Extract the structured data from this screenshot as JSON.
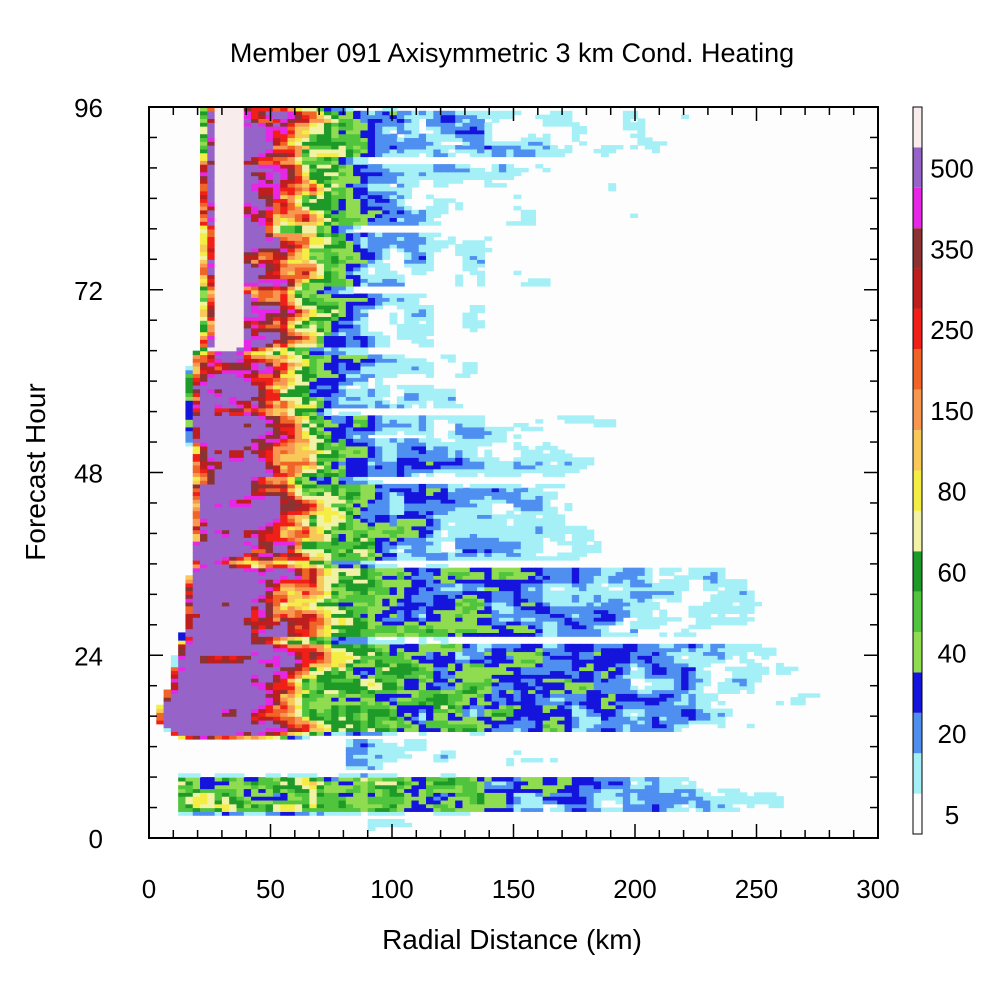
{
  "chart_data": {
    "type": "heatmap",
    "title": "Member 091 Axisymmetric 3 km Cond. Heating",
    "xlabel": "Radial Distance (km)",
    "ylabel": "Forecast Hour",
    "xlim": [
      0,
      300
    ],
    "ylim": [
      0,
      96
    ],
    "x_ticks": [
      0,
      50,
      100,
      150,
      200,
      250,
      300
    ],
    "x_tick_labels": [
      "0",
      "50",
      "100",
      "150",
      "200",
      "250",
      "300"
    ],
    "y_ticks": [
      0,
      24,
      48,
      72,
      96
    ],
    "y_tick_labels": [
      "0",
      "24",
      "48",
      "72",
      "96"
    ],
    "grid": false,
    "legend": "colorbar-right",
    "colorbar": {
      "levels": [
        5,
        10,
        20,
        30,
        40,
        50,
        60,
        70,
        80,
        100,
        150,
        200,
        250,
        300,
        350,
        400,
        500
      ],
      "labels": [
        "5",
        "20",
        "40",
        "60",
        "80",
        "150",
        "250",
        "350",
        "500"
      ],
      "colors": [
        "#fdfdfd",
        "#a4f0f6",
        "#4f8ff0",
        "#1414dc",
        "#8fdc50",
        "#50c43c",
        "#1e9a28",
        "#f2f2a6",
        "#f4ee44",
        "#f8c858",
        "#f89850",
        "#f06428",
        "#f02018",
        "#be1e1e",
        "#8c3232",
        "#e628e6",
        "#9664c8",
        "#f8ecec"
      ]
    },
    "bands": [
      {
        "t0": 0.5,
        "t1": 3.0,
        "strength": 0.3,
        "outer": 175,
        "inner": 90
      },
      {
        "t0": 3.0,
        "t1": 8.5,
        "strength": 0.58,
        "outer": 300,
        "inner": 12
      },
      {
        "t0": 8.5,
        "t1": 13.5,
        "strength": 0.32,
        "outer": 300,
        "inner": 80
      },
      {
        "t0": 13.5,
        "t1": 26.0,
        "strength": 0.62,
        "outer": 300,
        "inner": 0
      },
      {
        "t0": 26.0,
        "t1": 36.0,
        "strength": 0.55,
        "outer": 300,
        "inner": 14
      },
      {
        "t0": 36.0,
        "t1": 47.0,
        "strength": 0.46,
        "outer": 240,
        "inner": 16
      },
      {
        "t0": 47.0,
        "t1": 56.0,
        "strength": 0.4,
        "outer": 300,
        "inner": 17
      },
      {
        "t0": 56.0,
        "t1": 64.0,
        "strength": 0.38,
        "outer": 160,
        "inner": 17
      },
      {
        "t0": 64.0,
        "t1": 72.0,
        "strength": 0.3,
        "outer": 300,
        "inner": 18
      },
      {
        "t0": 72.0,
        "t1": 80.0,
        "strength": 0.34,
        "outer": 300,
        "inner": 19
      },
      {
        "t0": 80.0,
        "t1": 89.0,
        "strength": 0.36,
        "outer": 300,
        "inner": 22
      },
      {
        "t0": 89.0,
        "t1": 96.0,
        "strength": 0.42,
        "outer": 300,
        "inner": 24
      }
    ],
    "eyewall_rmw": [
      [
        0,
        30
      ],
      [
        12,
        25
      ],
      [
        16,
        12
      ],
      [
        20,
        18
      ],
      [
        24,
        22
      ],
      [
        30,
        25
      ],
      [
        36,
        27
      ],
      [
        42,
        28
      ],
      [
        48,
        27
      ],
      [
        54,
        26
      ],
      [
        60,
        24
      ],
      [
        66,
        32
      ],
      [
        72,
        32
      ],
      [
        80,
        31
      ],
      [
        88,
        30
      ],
      [
        96,
        31
      ]
    ]
  }
}
